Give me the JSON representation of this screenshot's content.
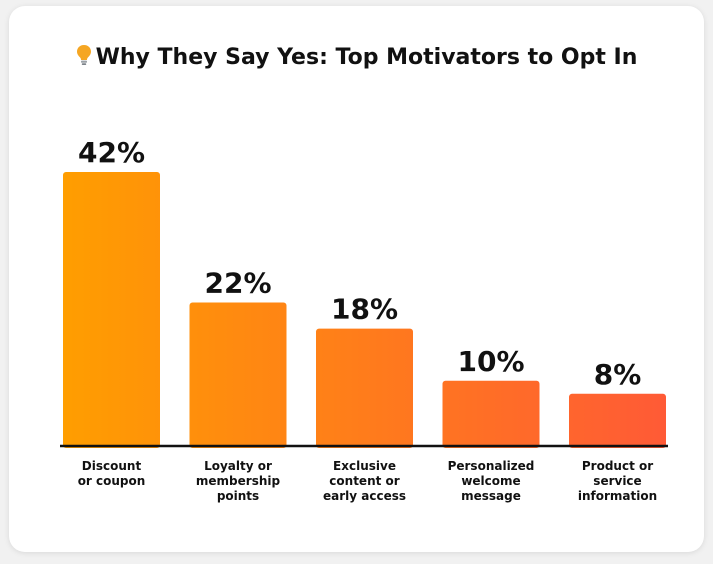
{
  "title": "Why They Say Yes: Top Motivators to Opt In",
  "icons": {
    "title_icon": "lightbulb-icon"
  },
  "colors": {
    "bar_start": "#ff9e00",
    "bar_end": "#ff5a36",
    "bulb": "#f5a623"
  },
  "chart_data": {
    "type": "bar",
    "title": "Why They Say Yes: Top Motivators to Opt In",
    "xlabel": "",
    "ylabel": "",
    "ylim": [
      0,
      42
    ],
    "grid": false,
    "categories": [
      [
        "Discount",
        "or coupon"
      ],
      [
        "Loyalty or",
        "membership",
        "points"
      ],
      [
        "Exclusive",
        "content or",
        "early access"
      ],
      [
        "Personalized",
        "welcome",
        "message"
      ],
      [
        "Product or",
        "service",
        "information"
      ]
    ],
    "values": [
      42,
      22,
      18,
      10,
      8
    ],
    "value_labels": [
      "42%",
      "22%",
      "18%",
      "10%",
      "8%"
    ],
    "unit": "%"
  }
}
